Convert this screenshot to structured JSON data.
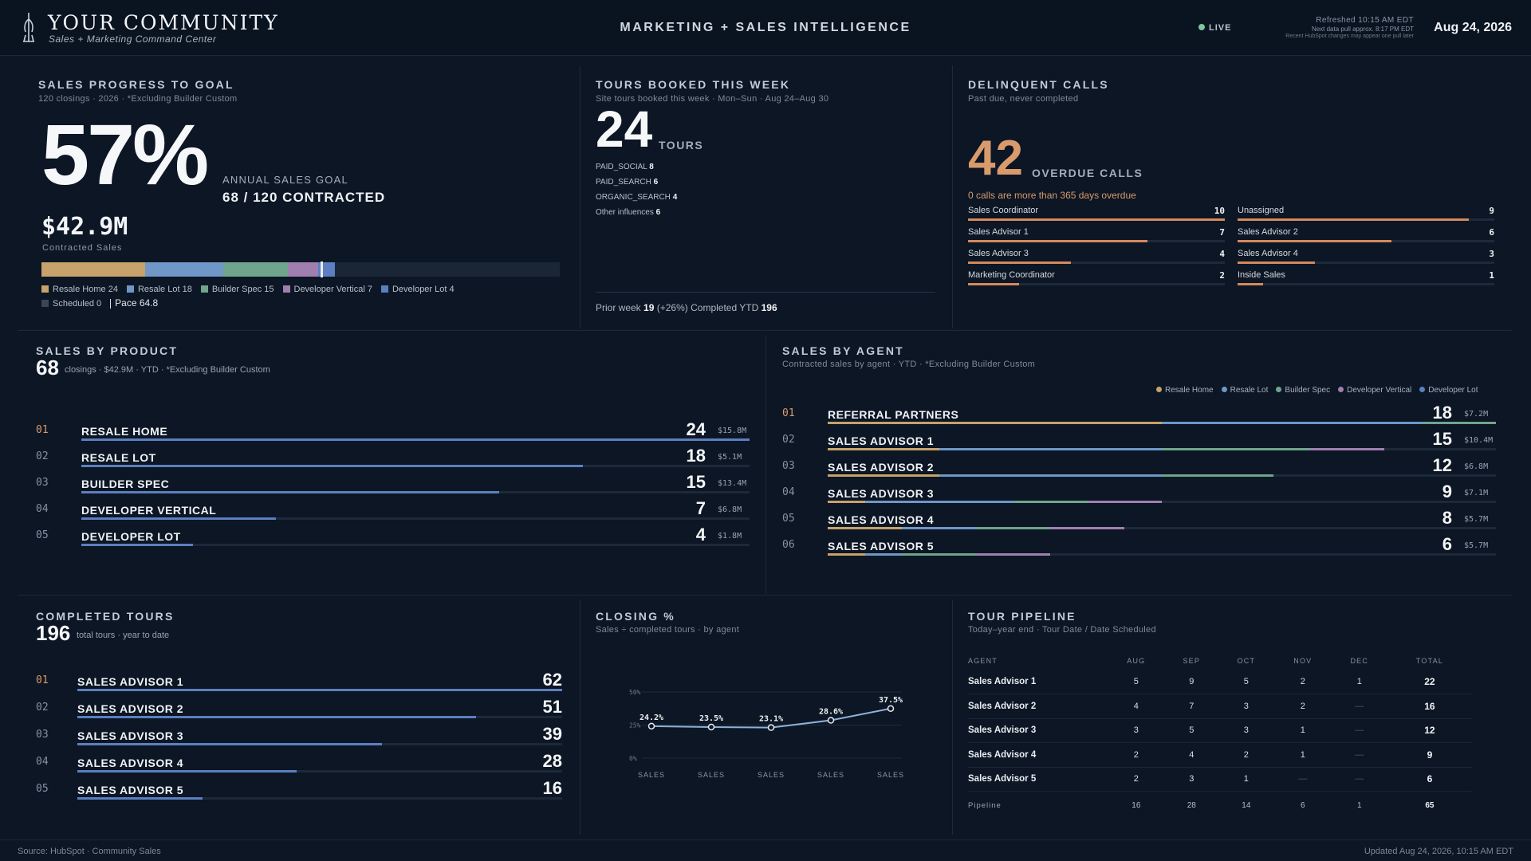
{
  "header": {
    "brand_title": "YOUR COMMUNITY",
    "brand_subtitle": "Sales + Marketing Command Center",
    "center_title": "MARKETING + SALES INTELLIGENCE",
    "live_label": "LIVE",
    "refreshed": "Refreshed 10:15 AM EDT",
    "next_pull": "Next data pull approx. 8:17 PM EDT",
    "note": "Recent HubSpot changes may appear one pull later",
    "date": "Aug 24, 2026",
    "live_color": "#7fc49b"
  },
  "colors": {
    "resale_home": "#c7a26b",
    "resale_lot": "#6f97c8",
    "builder_spec": "#6fa58c",
    "developer_vertical": "#a07fb0",
    "developer_lot": "#5b7fc0",
    "scheduled": "#3a4656",
    "accent_orange": "#d99a6c"
  },
  "sales_progress": {
    "title": "SALES PROGRESS TO GOAL",
    "subtitle": "120 closings · 2026 · *Excluding Builder Custom",
    "percent": "57%",
    "goal_label": "ANNUAL SALES GOAL",
    "goal_value": "68 / 120 CONTRACTED",
    "contracted_amount": "$42.9M",
    "contracted_label": "Contracted Sales",
    "goal_total": 120,
    "pace_value": 64.8,
    "segments": [
      {
        "key": "resale_home",
        "label": "Resale Home 24",
        "value": 24
      },
      {
        "key": "resale_lot",
        "label": "Resale Lot 18",
        "value": 18
      },
      {
        "key": "builder_spec",
        "label": "Builder Spec 15",
        "value": 15
      },
      {
        "key": "developer_vertical",
        "label": "Developer Vertical 7",
        "value": 7
      },
      {
        "key": "developer_lot",
        "label": "Developer Lot 4",
        "value": 4
      },
      {
        "key": "scheduled",
        "label": "Scheduled 0",
        "value": 0
      }
    ],
    "pace_label": "Pace 64.8"
  },
  "tours_booked": {
    "title": "TOURS BOOKED THIS WEEK",
    "subtitle": "Site tours booked this week · Mon–Sun · Aug 24–Aug 30",
    "count": "24",
    "unit": "TOURS",
    "sources": [
      {
        "name": "PAID_SOCIAL",
        "value": "8"
      },
      {
        "name": "PAID_SEARCH",
        "value": "6"
      },
      {
        "name": "ORGANIC_SEARCH",
        "value": "4"
      },
      {
        "name": "Other influences",
        "value": "6"
      }
    ],
    "footer": {
      "prior_label": "Prior week",
      "prior_value": "19",
      "change": "(+26%)",
      "ytd_label": "Completed YTD",
      "ytd_value": "196"
    }
  },
  "delinquent_calls": {
    "title": "DELINQUENT CALLS",
    "subtitle": "Past due, never completed",
    "count": "42",
    "unit": "OVERDUE CALLS",
    "note": "0 calls are more than 365 days overdue",
    "max": 10,
    "rows": [
      {
        "name": "Sales Coordinator",
        "value": "10",
        "num": 10
      },
      {
        "name": "Unassigned",
        "value": "9",
        "num": 9
      },
      {
        "name": "Sales Advisor 1",
        "value": "7",
        "num": 7
      },
      {
        "name": "Sales Advisor 2",
        "value": "6",
        "num": 6
      },
      {
        "name": "Sales Advisor 3",
        "value": "4",
        "num": 4
      },
      {
        "name": "Sales Advisor 4",
        "value": "3",
        "num": 3
      },
      {
        "name": "Marketing Coordinator",
        "value": "2",
        "num": 2
      },
      {
        "name": "Inside Sales",
        "value": "1",
        "num": 1
      }
    ]
  },
  "sales_by_product": {
    "title": "SALES BY PRODUCT",
    "count": "68",
    "subtitle": "closings · $42.9M · YTD · *Excluding Builder Custom",
    "max": 24,
    "rows": [
      {
        "rank": "01",
        "name": "RESALE HOME",
        "value": "24",
        "num": 24,
        "amount": "$15.8M"
      },
      {
        "rank": "02",
        "name": "RESALE LOT",
        "value": "18",
        "num": 18,
        "amount": "$5.1M"
      },
      {
        "rank": "03",
        "name": "BUILDER SPEC",
        "value": "15",
        "num": 15,
        "amount": "$13.4M"
      },
      {
        "rank": "04",
        "name": "DEVELOPER VERTICAL",
        "value": "7",
        "num": 7,
        "amount": "$6.8M"
      },
      {
        "rank": "05",
        "name": "DEVELOPER LOT",
        "value": "4",
        "num": 4,
        "amount": "$1.8M"
      }
    ]
  },
  "sales_by_agent": {
    "title": "SALES BY AGENT",
    "subtitle": "Contracted sales by agent · YTD · *Excluding Builder Custom",
    "legend": [
      {
        "key": "resale_home",
        "label": "Resale Home"
      },
      {
        "key": "resale_lot",
        "label": "Resale Lot"
      },
      {
        "key": "builder_spec",
        "label": "Builder Spec"
      },
      {
        "key": "developer_vertical",
        "label": "Developer Vertical"
      },
      {
        "key": "developer_lot",
        "label": "Developer Lot"
      }
    ],
    "max": 18,
    "rows": [
      {
        "rank": "01",
        "name": "REFERRAL PARTNERS",
        "value": "18",
        "num": 18,
        "amount": "$7.2M",
        "mix": [
          9,
          7,
          2,
          0,
          0
        ]
      },
      {
        "rank": "02",
        "name": "SALES ADVISOR 1",
        "value": "15",
        "num": 15,
        "amount": "$10.4M",
        "mix": [
          3,
          6,
          4,
          2,
          0
        ]
      },
      {
        "rank": "03",
        "name": "SALES ADVISOR 2",
        "value": "12",
        "num": 12,
        "amount": "$6.8M",
        "mix": [
          3,
          6,
          3,
          0,
          0
        ]
      },
      {
        "rank": "04",
        "name": "SALES ADVISOR 3",
        "value": "9",
        "num": 9,
        "amount": "$7.1M",
        "mix": [
          1,
          4,
          2,
          2,
          0
        ]
      },
      {
        "rank": "05",
        "name": "SALES ADVISOR 4",
        "value": "8",
        "num": 8,
        "amount": "$5.7M",
        "mix": [
          2,
          2,
          2,
          2,
          0
        ]
      },
      {
        "rank": "06",
        "name": "SALES ADVISOR 5",
        "value": "6",
        "num": 6,
        "amount": "$5.7M",
        "mix": [
          1,
          1,
          2,
          2,
          0
        ]
      }
    ]
  },
  "completed_tours": {
    "title": "COMPLETED TOURS",
    "count": "196",
    "subtitle": "total tours · year to date",
    "max": 62,
    "rows": [
      {
        "rank": "01",
        "name": "SALES ADVISOR 1",
        "value": "62",
        "num": 62
      },
      {
        "rank": "02",
        "name": "SALES ADVISOR 2",
        "value": "51",
        "num": 51
      },
      {
        "rank": "03",
        "name": "SALES ADVISOR 3",
        "value": "39",
        "num": 39
      },
      {
        "rank": "04",
        "name": "SALES ADVISOR 4",
        "value": "28",
        "num": 28
      },
      {
        "rank": "05",
        "name": "SALES ADVISOR 5",
        "value": "16",
        "num": 16
      }
    ]
  },
  "closing_pct": {
    "title": "CLOSING %",
    "subtitle": "Sales ÷ completed tours · by agent",
    "chart_data": {
      "type": "line",
      "categories": [
        "SALES",
        "SALES",
        "SALES",
        "SALES",
        "SALES"
      ],
      "values": [
        24.2,
        23.5,
        23.1,
        28.6,
        37.5
      ],
      "point_labels": [
        "24.2%",
        "23.5%",
        "23.1%",
        "28.6%",
        "37.5%"
      ],
      "ylim": [
        0,
        50
      ],
      "yticks": [
        {
          "v": 50,
          "label": "50%"
        },
        {
          "v": 25,
          "label": "25%"
        },
        {
          "v": 0,
          "label": "0%"
        }
      ],
      "grid": true,
      "line_color": "#8fb0d8"
    }
  },
  "tour_pipeline": {
    "title": "TOUR PIPELINE",
    "subtitle": "Today–year end · Tour Date / Date Scheduled",
    "columns": [
      "AGENT",
      "AUG",
      "SEP",
      "OCT",
      "NOV",
      "DEC",
      "TOTAL"
    ],
    "rows": [
      {
        "agent": "Sales Advisor 1",
        "cells": [
          "5",
          "9",
          "5",
          "2",
          "1"
        ],
        "total": "22"
      },
      {
        "agent": "Sales Advisor 2",
        "cells": [
          "4",
          "7",
          "3",
          "2",
          "—"
        ],
        "total": "16"
      },
      {
        "agent": "Sales Advisor 3",
        "cells": [
          "3",
          "5",
          "3",
          "1",
          "—"
        ],
        "total": "12"
      },
      {
        "agent": "Sales Advisor 4",
        "cells": [
          "2",
          "4",
          "2",
          "1",
          "—"
        ],
        "total": "9"
      },
      {
        "agent": "Sales Advisor 5",
        "cells": [
          "2",
          "3",
          "1",
          "—",
          "—"
        ],
        "total": "6"
      }
    ],
    "pipeline": {
      "label": "Pipeline",
      "cells": [
        "16",
        "28",
        "14",
        "6",
        "1"
      ],
      "total": "65"
    }
  },
  "footer": {
    "source": "Source: HubSpot · Community Sales",
    "updated": "Updated Aug 24, 2026, 10:15 AM EDT"
  }
}
